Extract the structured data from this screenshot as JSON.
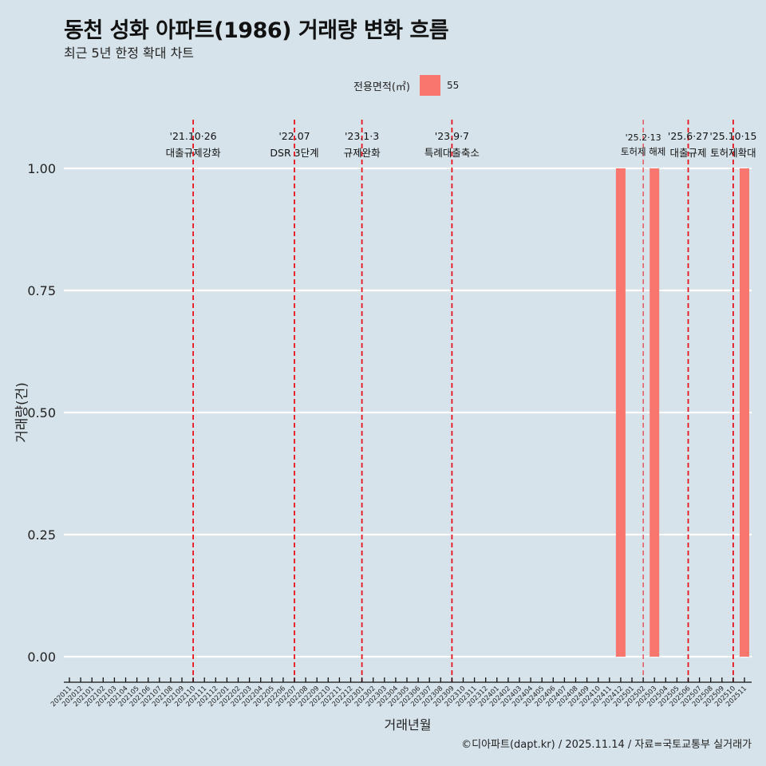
{
  "header": {
    "title": "동천 성화 아파트(1986) 거래량 변화 흐름",
    "subtitle": "최근 5년 한정 확대 차트"
  },
  "legend": {
    "title": "전용면적(㎡)",
    "items": [
      {
        "label": "55",
        "color": "#f8766d"
      }
    ]
  },
  "caption": "©디아파트(dapt.kr) / 2025.11.14 / 자료=국토교통부 실거래가",
  "chart_data": {
    "type": "bar",
    "title": "동천 성화 아파트(1986) 거래량 변화 흐름",
    "xlabel": "거래년월",
    "ylabel": "거래량(건)",
    "ylim": [
      0,
      1
    ],
    "yticks": [
      "0.00",
      "0.25",
      "0.50",
      "0.75",
      "1.00"
    ],
    "categories": [
      "202011",
      "202012",
      "202101",
      "202102",
      "202103",
      "202104",
      "202105",
      "202106",
      "202107",
      "202108",
      "202109",
      "202110",
      "202111",
      "202112",
      "202201",
      "202202",
      "202203",
      "202204",
      "202205",
      "202206",
      "202207",
      "202208",
      "202209",
      "202210",
      "202211",
      "202212",
      "202301",
      "202302",
      "202303",
      "202304",
      "202305",
      "202306",
      "202307",
      "202308",
      "202309",
      "202310",
      "202311",
      "202312",
      "202401",
      "202402",
      "202403",
      "202404",
      "202405",
      "202406",
      "202407",
      "202408",
      "202409",
      "202410",
      "202411",
      "202412",
      "202501",
      "202502",
      "202503",
      "202504",
      "202505",
      "202506",
      "202507",
      "202508",
      "202509",
      "202510",
      "202511"
    ],
    "series": [
      {
        "name": "55",
        "color": "#f8766d",
        "points": [
          {
            "x": "202412",
            "y": 1
          },
          {
            "x": "202503",
            "y": 1
          },
          {
            "x": "202511",
            "y": 1
          }
        ]
      }
    ],
    "events": [
      {
        "x": "202110",
        "date": "'21.10·26",
        "label": "대출규제강화"
      },
      {
        "x": "202207",
        "date": "'22.07",
        "label": "DSR 3단계"
      },
      {
        "x": "202301",
        "date": "'23.1·3",
        "label": "규제완화"
      },
      {
        "x": "202309",
        "date": "'23.9·7",
        "label": "특례대출축소"
      },
      {
        "x": "202502",
        "date": "'25.2·13",
        "label": "토허제 해제"
      },
      {
        "x": "202506",
        "date": "'25.6·27",
        "label": "대출규제"
      },
      {
        "x": "202510",
        "date": "'25.10·15",
        "label": "토허제확대"
      }
    ],
    "grid": true,
    "legend_position": "top"
  }
}
